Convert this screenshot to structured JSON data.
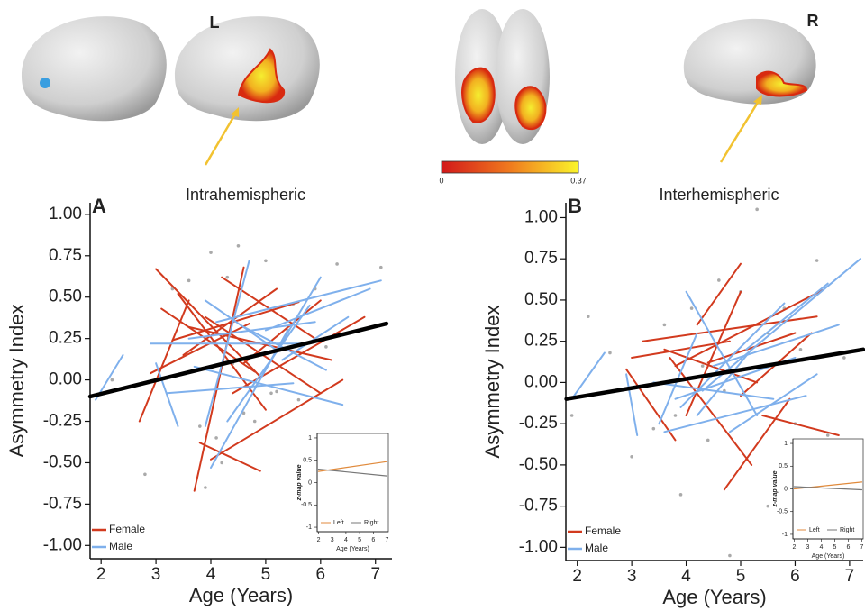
{
  "header": {
    "hemisphere_labels": [
      "L",
      "R"
    ],
    "colorbar": {
      "ticks": [
        0,
        0.37
      ]
    }
  },
  "chart_data": [
    {
      "type": "line",
      "title": "Intrahemispheric",
      "panel_label": "A",
      "xlabel": "Age (Years)",
      "ylabel": "Asymmetry Index",
      "xlim": [
        1.8,
        7.3
      ],
      "ylim": [
        -1.08,
        1.07
      ],
      "xticks": [
        2,
        3,
        4,
        5,
        6,
        7
      ],
      "yticks": [
        {
          "value": -1,
          "label": "-1.00"
        },
        {
          "value": -0.75,
          "label": "-0.75"
        },
        {
          "value": -0.5,
          "label": "-0.50"
        },
        {
          "value": -0.25,
          "label": "-0.25"
        },
        {
          "value": 0,
          "label": "0.00"
        },
        {
          "value": 0.25,
          "label": "0.25"
        },
        {
          "value": 0.5,
          "label": "0.50"
        },
        {
          "value": 0.75,
          "label": "0.75"
        },
        {
          "value": 1,
          "label": "1.00"
        }
      ],
      "legend": "lower left",
      "series": [
        {
          "name": "Female",
          "color": "#d23a1e",
          "x": [
            3.0,
            4.9,
            null,
            3.7,
            4.6,
            null,
            3.3,
            5.6,
            null,
            3.9,
            6.0,
            null,
            2.7,
            3.6,
            null,
            4.0,
            6.4,
            null,
            3.5,
            5.2,
            null,
            3.1,
            4.8,
            null,
            4.2,
            5.9,
            null,
            3.6,
            6.2,
            null,
            4.4,
            6.8,
            null,
            3.8,
            4.9,
            null,
            2.9,
            4.7,
            null,
            4.6,
            6.0,
            null,
            3.4,
            5.0
          ],
          "values": [
            0.67,
            0.02,
            null,
            -0.67,
            0.68,
            null,
            0.24,
            0.47,
            null,
            0.38,
            -0.08,
            null,
            -0.25,
            0.48,
            null,
            -0.48,
            0.0,
            null,
            0.15,
            0.55,
            null,
            0.43,
            0.05,
            null,
            0.62,
            0.25,
            null,
            0.32,
            0.12,
            null,
            -0.08,
            0.38,
            null,
            -0.38,
            -0.55,
            null,
            0.04,
            0.34,
            null,
            0.1,
            0.48,
            null,
            0.52,
            -0.18
          ]
        },
        {
          "name": "Male",
          "color": "#7fb0ec",
          "x": [
            1.9,
            2.4,
            null,
            2.9,
            5.8,
            null,
            3.9,
            4.7,
            null,
            4.1,
            7.1,
            null,
            3.2,
            5.5,
            null,
            4.0,
            5.4,
            null,
            5.0,
            6.9,
            null,
            3.7,
            6.4,
            null,
            4.3,
            5.8,
            null,
            3.0,
            3.4,
            null,
            4.6,
            6.1,
            null,
            3.6,
            5.9,
            null,
            4.8,
            6.0,
            null,
            3.9,
            5.2,
            null,
            5.3,
            6.5
          ],
          "values": [
            -0.12,
            0.15,
            null,
            0.22,
            0.22,
            null,
            -0.28,
            0.72,
            null,
            0.35,
            0.6,
            null,
            -0.08,
            -0.02,
            null,
            -0.53,
            0.3,
            null,
            0.3,
            0.55,
            null,
            0.08,
            -0.15,
            null,
            -0.25,
            0.45,
            null,
            0.1,
            -0.28,
            null,
            0.32,
            0.06,
            null,
            0.25,
            0.35,
            null,
            -0.05,
            0.62,
            null,
            0.48,
            0.18,
            null,
            0.12,
            0.38
          ]
        }
      ],
      "points": {
        "color": "#aaaaaa",
        "x": [
          2.8,
          3.3,
          3.6,
          3.8,
          4.0,
          4.1,
          4.3,
          4.5,
          4.6,
          4.8,
          5.0,
          5.2,
          5.4,
          5.6,
          5.9,
          6.1,
          6.3,
          6.7,
          7.1,
          3.9,
          4.2,
          4.4,
          5.1,
          5.5,
          2.2
        ],
        "values": [
          -0.57,
          0.55,
          0.6,
          -0.28,
          0.77,
          -0.35,
          0.62,
          0.81,
          -0.2,
          -0.25,
          0.72,
          -0.07,
          0.3,
          -0.12,
          0.55,
          0.2,
          0.7,
          0.3,
          0.68,
          -0.65,
          -0.5,
          0.1,
          -0.08,
          0.46,
          0.0
        ]
      },
      "fit": {
        "color": "#000000",
        "x": [
          1.8,
          7.2
        ],
        "values": [
          -0.1,
          0.34
        ]
      }
    },
    {
      "type": "line",
      "xlabel": "Age (Years)",
      "ylabel": "z-map value",
      "frame": true,
      "legend": "lower center",
      "xlim": [
        1.9,
        7.1
      ],
      "ylim": [
        -1.1,
        1.1
      ],
      "xticks": [
        2,
        3,
        4,
        5,
        6,
        7
      ],
      "yticks": [
        -1,
        -0.5,
        0,
        0.5,
        1
      ],
      "series": [
        {
          "name": "Left",
          "color": "#e08a3c",
          "x": [
            2,
            7
          ],
          "values": [
            0.25,
            0.47
          ]
        },
        {
          "name": "Right",
          "color": "#777777",
          "x": [
            2,
            7
          ],
          "values": [
            0.3,
            0.15
          ]
        }
      ]
    },
    {
      "type": "line",
      "title": "Interhemispheric",
      "panel_label": "B",
      "xlabel": "Age (Years)",
      "ylabel": "Asymmetry Index",
      "xlim": [
        1.79,
        7.25
      ],
      "ylim": [
        -1.08,
        1.09
      ],
      "xticks": [
        2,
        3,
        4,
        5,
        6,
        7
      ],
      "yticks": [
        {
          "value": -1,
          "label": "-1.00"
        },
        {
          "value": -0.75,
          "label": "-0.75"
        },
        {
          "value": -0.5,
          "label": "-0.50"
        },
        {
          "value": -0.25,
          "label": "-0.25"
        },
        {
          "value": 0,
          "label": "0.00"
        },
        {
          "value": 0.25,
          "label": "0.25"
        },
        {
          "value": 0.5,
          "label": "0.50"
        },
        {
          "value": 0.75,
          "label": "0.75"
        },
        {
          "value": 1,
          "label": "1.00"
        }
      ],
      "legend": "lower left",
      "series": [
        {
          "name": "Female",
          "color": "#d23a1e",
          "x": [
            2.9,
            3.8,
            null,
            3.7,
            5.2,
            null,
            3.2,
            6.4,
            null,
            4.0,
            5.0,
            null,
            4.2,
            5.0,
            null,
            3.8,
            6.5,
            null,
            4.7,
            5.9,
            null,
            3.6,
            5.3,
            null,
            5.4,
            6.8,
            null,
            4.4,
            6.0,
            null,
            3.0,
            4.8,
            null,
            5.0,
            6.3
          ],
          "values": [
            0.08,
            -0.35,
            null,
            0.15,
            -0.5,
            null,
            0.25,
            0.4,
            null,
            -0.2,
            0.55,
            null,
            0.35,
            0.72,
            null,
            0.1,
            0.56,
            null,
            -0.65,
            -0.1,
            null,
            0.2,
            0.0,
            null,
            -0.2,
            -0.32,
            null,
            0.12,
            0.3,
            null,
            0.15,
            0.25,
            null,
            -0.08,
            0.3
          ]
        },
        {
          "name": "Male",
          "color": "#7fb0ec",
          "x": [
            1.9,
            2.5,
            null,
            2.9,
            3.1,
            null,
            3.5,
            4.2,
            null,
            4.0,
            5.3,
            null,
            4.3,
            7.2,
            null,
            3.8,
            6.0,
            null,
            4.5,
            6.8,
            null,
            3.4,
            5.6,
            null,
            4.8,
            6.4,
            null,
            3.9,
            5.8,
            null,
            5.1,
            6.6,
            null,
            4.2,
            5.2,
            null,
            3.6,
            6.2
          ],
          "values": [
            -0.1,
            0.18,
            null,
            0.05,
            -0.32,
            null,
            -0.25,
            0.3,
            null,
            0.55,
            -0.2,
            null,
            -0.05,
            0.75,
            null,
            -0.1,
            0.15,
            null,
            0.1,
            0.35,
            null,
            0.0,
            -0.1,
            null,
            -0.3,
            0.05,
            null,
            -0.15,
            0.48,
            null,
            0.2,
            0.6,
            null,
            -0.2,
            0.2,
            null,
            -0.3,
            -0.08
          ]
        }
      ],
      "points": {
        "color": "#aaaaaa",
        "x": [
          2.2,
          2.6,
          3.0,
          3.4,
          3.6,
          3.9,
          4.1,
          4.4,
          4.6,
          4.8,
          5.0,
          5.3,
          5.5,
          5.8,
          6.1,
          6.4,
          6.6,
          6.9,
          4.7,
          5.5,
          1.9,
          3.8,
          4.3,
          6.0
        ],
        "values": [
          0.4,
          0.18,
          -0.45,
          -0.28,
          0.35,
          -0.68,
          0.45,
          -0.35,
          0.62,
          -1.05,
          0.55,
          1.05,
          -0.75,
          0.45,
          0.2,
          0.74,
          -0.32,
          0.15,
          -0.05,
          0.3,
          -0.2,
          -0.2,
          0.1,
          -0.25
        ]
      },
      "fit": {
        "color": "#000000",
        "x": [
          1.8,
          7.25
        ],
        "values": [
          -0.1,
          0.2
        ]
      }
    },
    {
      "type": "line",
      "xlabel": "Age (Years)",
      "ylabel": "z-map value",
      "frame": true,
      "legend": "lower center",
      "xlim": [
        1.9,
        7.1
      ],
      "ylim": [
        -1.1,
        1.1
      ],
      "xticks": [
        2,
        3,
        4,
        5,
        6,
        7
      ],
      "yticks": [
        -1,
        -0.5,
        0,
        0.5,
        1
      ],
      "series": [
        {
          "name": "Left",
          "color": "#e08a3c",
          "x": [
            2,
            7
          ],
          "values": [
            0.0,
            0.15
          ]
        },
        {
          "name": "Right",
          "color": "#777777",
          "x": [
            2,
            7
          ],
          "values": [
            0.05,
            -0.02
          ]
        }
      ]
    }
  ]
}
